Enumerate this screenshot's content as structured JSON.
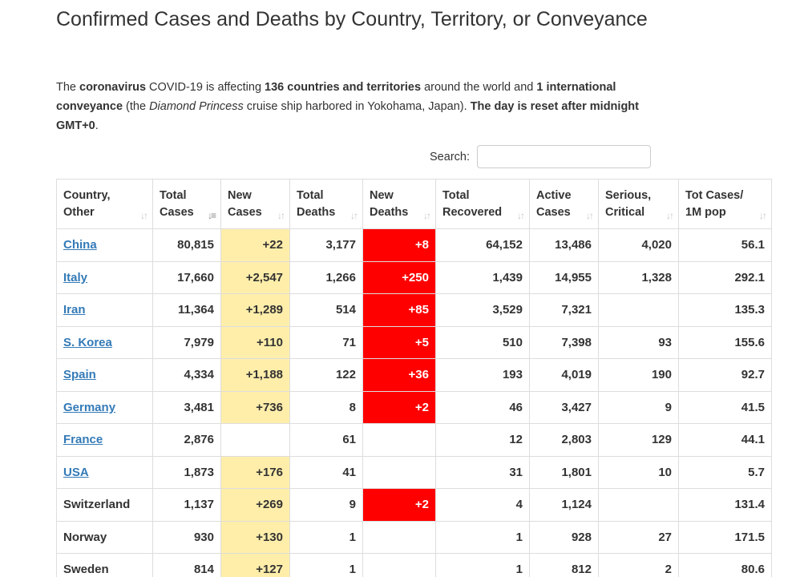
{
  "header": {
    "title": "Confirmed Cases and Deaths by Country, Territory, or Conveyance"
  },
  "intro": {
    "t1": "The ",
    "b1": "coronavirus",
    "t2": " COVID-19 is affecting ",
    "b2": "136 countries and territories",
    "t3": " around the world and ",
    "b3": "1 international conveyance",
    "t4": " (the ",
    "i1": "Diamond Princess",
    "t5": " cruise ship harbored in Yokohama, Japan). ",
    "b4": "The day is reset after midnight GMT+0",
    "t6": "."
  },
  "search": {
    "label": "Search:",
    "value": "",
    "placeholder": ""
  },
  "table": {
    "columns": [
      {
        "line1": "Country,",
        "line2": "Other",
        "sort_icon": "sort-both-icon",
        "active": false
      },
      {
        "line1": "Total",
        "line2": "Cases",
        "sort_icon": "sort-desc-icon",
        "active": true
      },
      {
        "line1": "New",
        "line2": "Cases",
        "sort_icon": "sort-both-icon",
        "active": false
      },
      {
        "line1": "Total",
        "line2": "Deaths",
        "sort_icon": "sort-both-icon",
        "active": false
      },
      {
        "line1": "New",
        "line2": "Deaths",
        "sort_icon": "sort-both-icon",
        "active": false
      },
      {
        "line1": "Total",
        "line2": "Recovered",
        "sort_icon": "sort-both-icon",
        "active": false
      },
      {
        "line1": "Active",
        "line2": "Cases",
        "sort_icon": "sort-both-icon",
        "active": false
      },
      {
        "line1": "Serious,",
        "line2": "Critical",
        "sort_icon": "sort-both-icon",
        "active": false
      },
      {
        "line1": "Tot Cases/",
        "line2": "1M pop",
        "sort_icon": "sort-both-icon",
        "active": false
      }
    ],
    "rows": [
      {
        "country": "China",
        "link": true,
        "total_cases": "80,815",
        "new_cases": "+22",
        "total_deaths": "3,177",
        "new_deaths": "+8",
        "total_recovered": "64,152",
        "active_cases": "13,486",
        "serious_critical": "4,020",
        "per_million": "56.1"
      },
      {
        "country": "Italy",
        "link": true,
        "total_cases": "17,660",
        "new_cases": "+2,547",
        "total_deaths": "1,266",
        "new_deaths": "+250",
        "total_recovered": "1,439",
        "active_cases": "14,955",
        "serious_critical": "1,328",
        "per_million": "292.1"
      },
      {
        "country": "Iran",
        "link": true,
        "total_cases": "11,364",
        "new_cases": "+1,289",
        "total_deaths": "514",
        "new_deaths": "+85",
        "total_recovered": "3,529",
        "active_cases": "7,321",
        "serious_critical": "",
        "per_million": "135.3"
      },
      {
        "country": "S. Korea",
        "link": true,
        "total_cases": "7,979",
        "new_cases": "+110",
        "total_deaths": "71",
        "new_deaths": "+5",
        "total_recovered": "510",
        "active_cases": "7,398",
        "serious_critical": "93",
        "per_million": "155.6"
      },
      {
        "country": "Spain",
        "link": true,
        "total_cases": "4,334",
        "new_cases": "+1,188",
        "total_deaths": "122",
        "new_deaths": "+36",
        "total_recovered": "193",
        "active_cases": "4,019",
        "serious_critical": "190",
        "per_million": "92.7"
      },
      {
        "country": "Germany",
        "link": true,
        "total_cases": "3,481",
        "new_cases": "+736",
        "total_deaths": "8",
        "new_deaths": "+2",
        "total_recovered": "46",
        "active_cases": "3,427",
        "serious_critical": "9",
        "per_million": "41.5"
      },
      {
        "country": "France",
        "link": true,
        "total_cases": "2,876",
        "new_cases": "",
        "total_deaths": "61",
        "new_deaths": "",
        "total_recovered": "12",
        "active_cases": "2,803",
        "serious_critical": "129",
        "per_million": "44.1"
      },
      {
        "country": "USA",
        "link": true,
        "total_cases": "1,873",
        "new_cases": "+176",
        "total_deaths": "41",
        "new_deaths": "",
        "total_recovered": "31",
        "active_cases": "1,801",
        "serious_critical": "10",
        "per_million": "5.7"
      },
      {
        "country": "Switzerland",
        "link": false,
        "total_cases": "1,137",
        "new_cases": "+269",
        "total_deaths": "9",
        "new_deaths": "+2",
        "total_recovered": "4",
        "active_cases": "1,124",
        "serious_critical": "",
        "per_million": "131.4"
      },
      {
        "country": "Norway",
        "link": false,
        "total_cases": "930",
        "new_cases": "+130",
        "total_deaths": "1",
        "new_deaths": "",
        "total_recovered": "1",
        "active_cases": "928",
        "serious_critical": "27",
        "per_million": "171.5"
      },
      {
        "country": "Sweden",
        "link": false,
        "total_cases": "814",
        "new_cases": "+127",
        "total_deaths": "1",
        "new_deaths": "",
        "total_recovered": "1",
        "active_cases": "812",
        "serious_critical": "2",
        "per_million": "80.6"
      }
    ]
  },
  "colors": {
    "new_cases_highlight": "#ffeeaa",
    "new_deaths_highlight": "#ff0000",
    "link": "#337ab7"
  }
}
